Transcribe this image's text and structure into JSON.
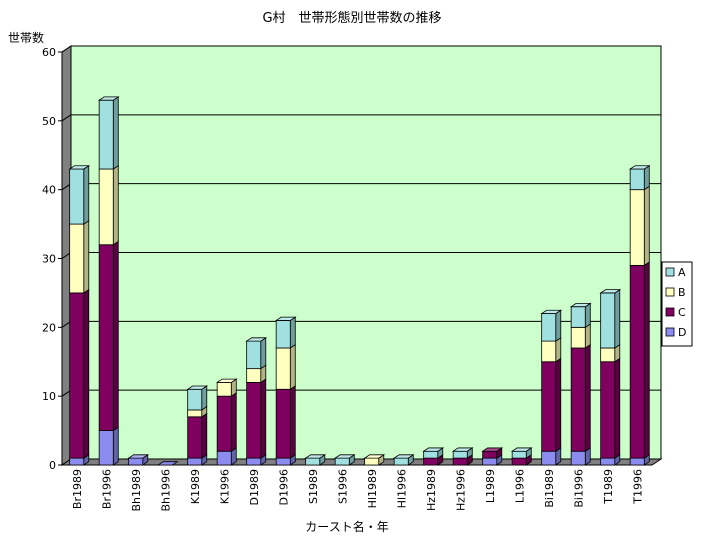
{
  "chart_data": {
    "type": "bar",
    "stacked": true,
    "title": "G村　世帯形態別世帯数の推移",
    "xlabel": "カースト名・年",
    "ylabel": "世帯数",
    "ylim": [
      0,
      60
    ],
    "yticks": [
      0,
      10,
      20,
      30,
      40,
      50,
      60
    ],
    "grid": true,
    "legend_position": "right",
    "categories": [
      "Br1989",
      "Br1996",
      "Bh1989",
      "Bh1996",
      "K1989",
      "K1996",
      "D1989",
      "D1996",
      "S1989",
      "S1996",
      "Hl1989",
      "Hl1996",
      "Hz1989",
      "Hz1996",
      "L1989",
      "L1996",
      "Bi1989",
      "Bi1996",
      "T1989",
      "T1996"
    ],
    "series": [
      {
        "name": "D",
        "color": "#8c8cf0",
        "values": [
          1,
          5,
          1,
          0,
          1,
          2,
          1,
          1,
          0,
          0,
          0,
          0,
          0,
          0,
          1,
          0,
          2,
          2,
          1,
          1
        ]
      },
      {
        "name": "C",
        "color": "#800060",
        "values": [
          24,
          27,
          0,
          0,
          6,
          8,
          11,
          10,
          0,
          0,
          0,
          0,
          1,
          1,
          1,
          1,
          13,
          15,
          14,
          28
        ]
      },
      {
        "name": "B",
        "color": "#ffffc0",
        "values": [
          10,
          11,
          0,
          0,
          1,
          2,
          2,
          6,
          0,
          0,
          1,
          0,
          0,
          0,
          0,
          0,
          3,
          3,
          2,
          11
        ]
      },
      {
        "name": "A",
        "color": "#a0e0e0",
        "values": [
          8,
          10,
          0,
          0,
          3,
          0,
          4,
          4,
          1,
          1,
          0,
          1,
          1,
          1,
          0,
          1,
          4,
          3,
          8,
          3
        ]
      }
    ],
    "legend_order": [
      "A",
      "B",
      "C",
      "D"
    ],
    "colors": {
      "plot_background": "#ccffcc",
      "grid": "#000000",
      "wall": "#808080"
    }
  }
}
